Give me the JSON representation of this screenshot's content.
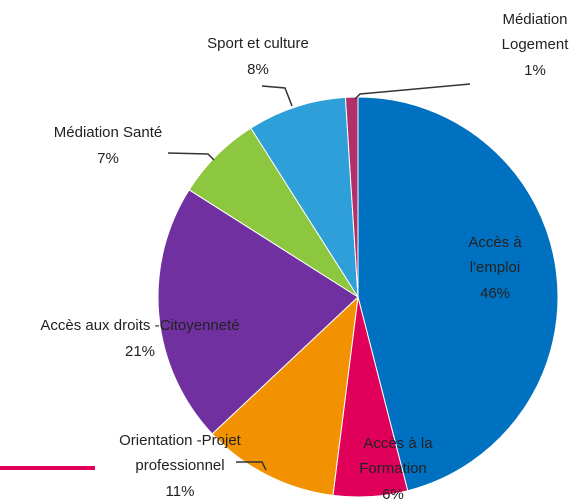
{
  "chart_data": {
    "type": "pie",
    "categories": [
      [
        "Accès à",
        "l'emploi"
      ],
      [
        "Accès à la",
        "Formation"
      ],
      [
        "Orientation -Projet",
        "professionnel"
      ],
      [
        "Accès aux droits -Citoyenneté"
      ],
      [
        "Médiation Santé"
      ],
      [
        "Sport et culture"
      ],
      [
        "Médiation",
        "Logement"
      ]
    ],
    "values": [
      46,
      6,
      11,
      21,
      7,
      8,
      1
    ],
    "value_labels": [
      "46%",
      "6%",
      "11%",
      "21%",
      "7%",
      "8%",
      "1%"
    ],
    "colors": [
      "#0070c0",
      "#e0005a",
      "#f39200",
      "#7030a0",
      "#8dc63f",
      "#2e9fd9",
      "#b0306a"
    ]
  }
}
